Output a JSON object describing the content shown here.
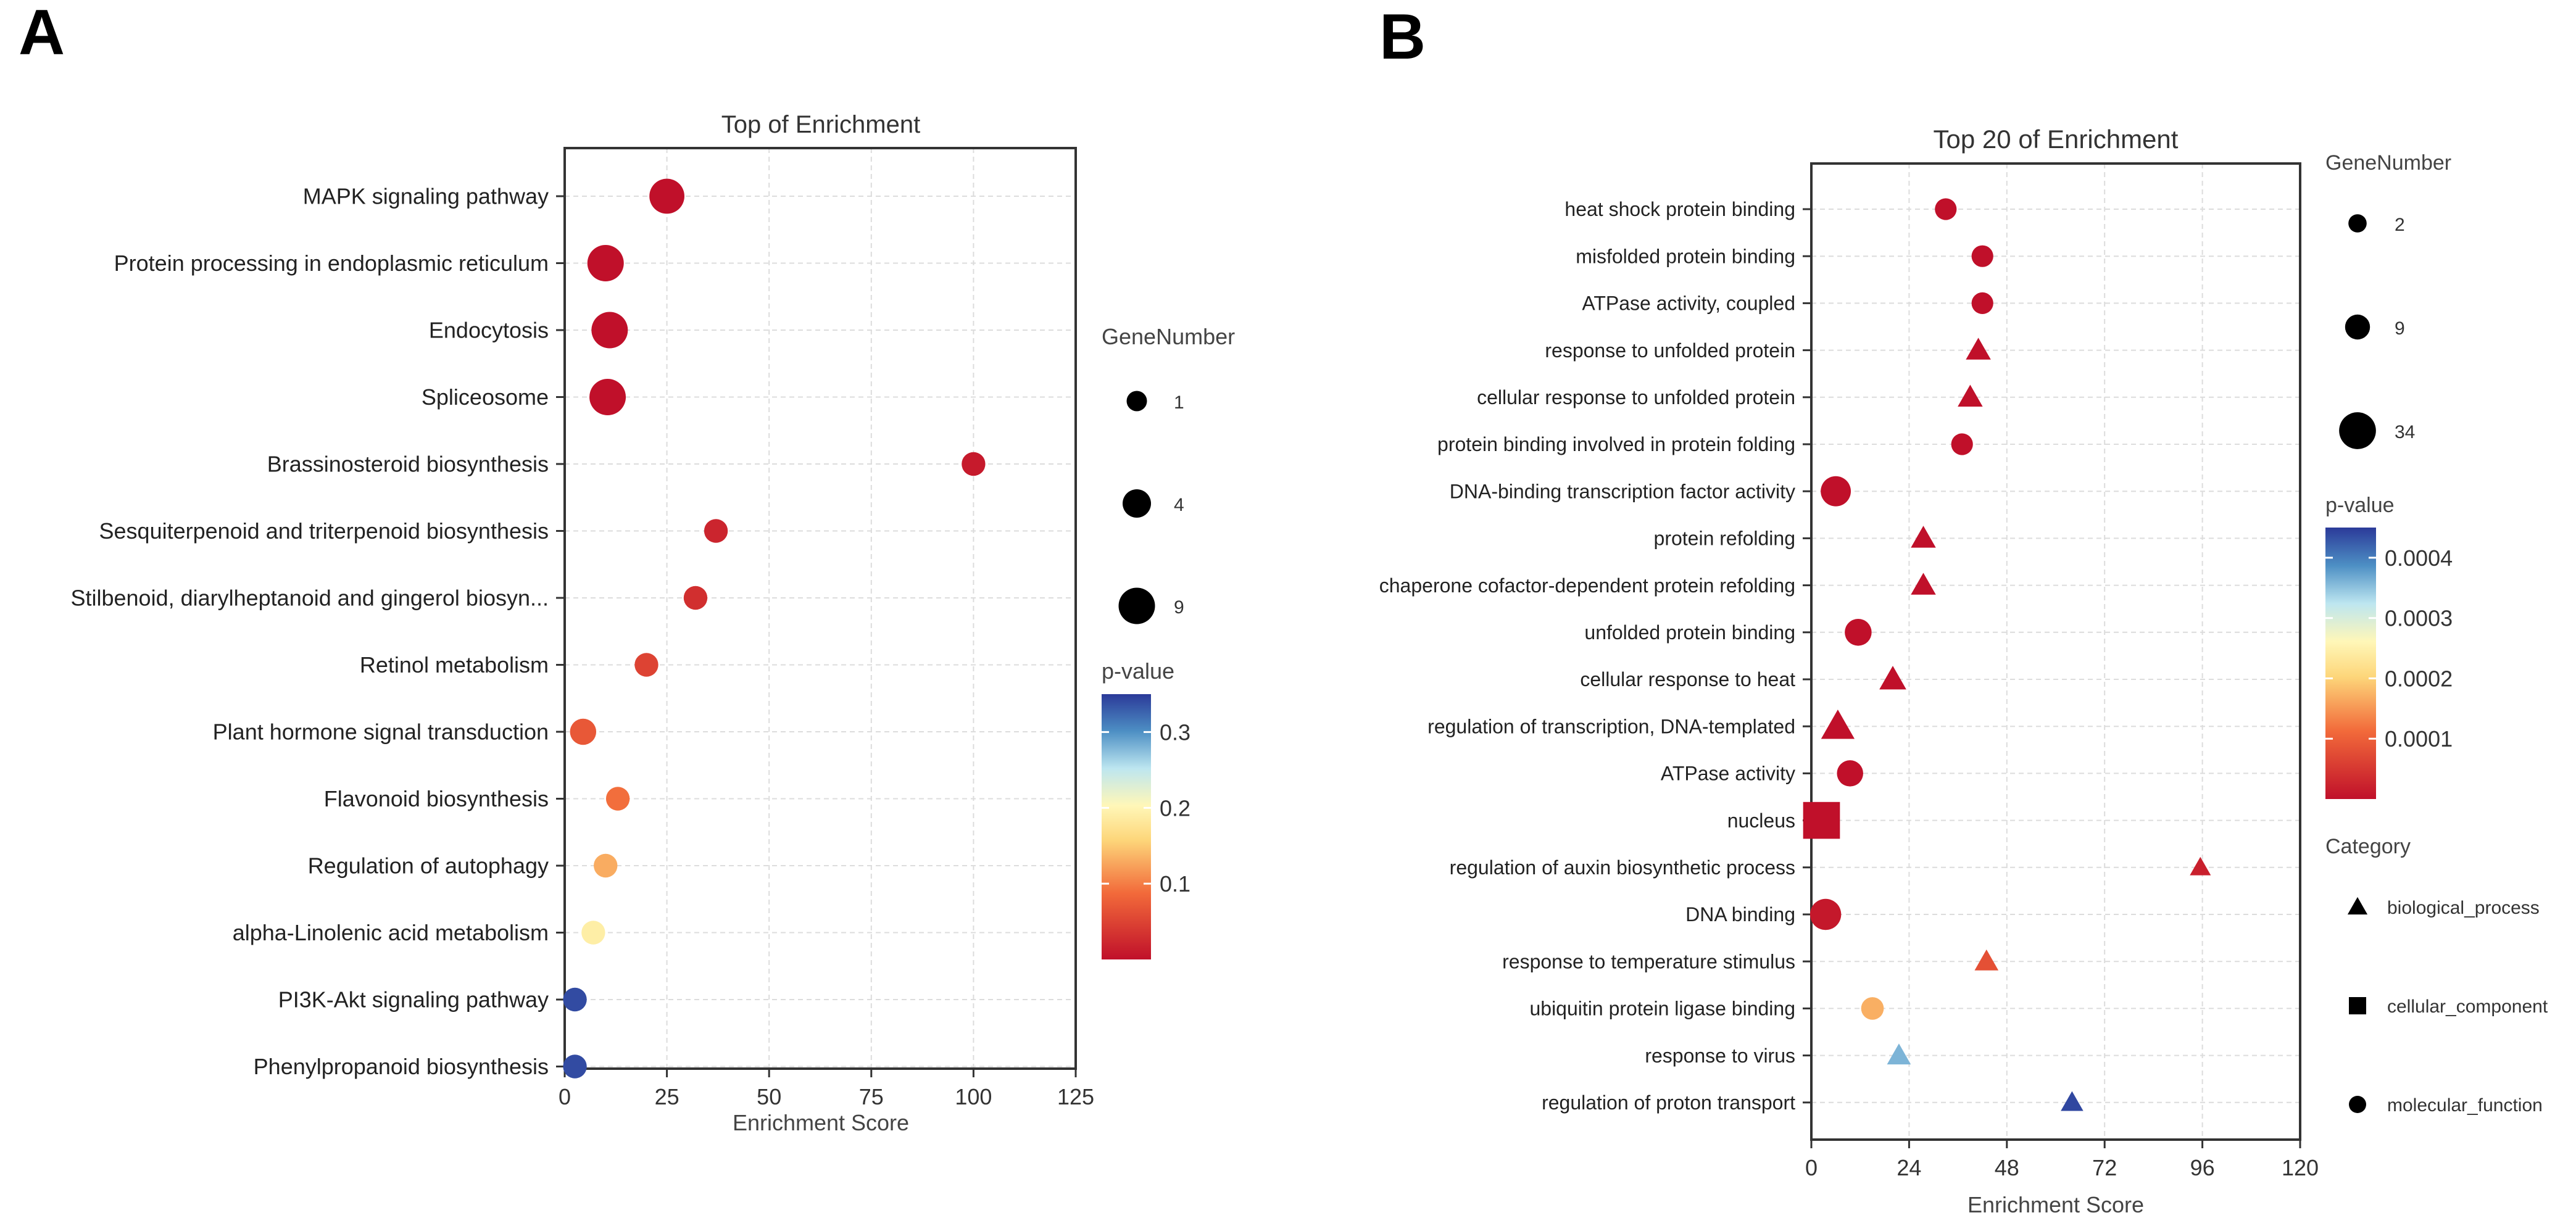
{
  "panels": {
    "a": {
      "letter": "A"
    },
    "b": {
      "letter": "B"
    }
  },
  "chart_data": [
    {
      "type": "scatter",
      "panel": "A",
      "title": "Top  of  Enrichment",
      "xlabel": "Enrichment Score",
      "ylabel": "",
      "xlim": [
        0,
        125
      ],
      "xticks": [
        0,
        25,
        50,
        75,
        100,
        125
      ],
      "grid": true,
      "points": [
        {
          "term": "MAPK signaling pathway",
          "x": 25,
          "p": 0.0,
          "gene": 8
        },
        {
          "term": "Protein processing in endoplasmic reticulum",
          "x": 10,
          "p": 0.0,
          "gene": 9
        },
        {
          "term": "Endocytosis",
          "x": 11,
          "p": 0.0,
          "gene": 9
        },
        {
          "term": "Spliceosome",
          "x": 10.5,
          "p": 0.0,
          "gene": 9
        },
        {
          "term": "Brassinosteroid biosynthesis",
          "x": 100,
          "p": 0.01,
          "gene": 2
        },
        {
          "term": "Sesquiterpenoid and triterpenoid biosynthesis",
          "x": 37,
          "p": 0.02,
          "gene": 2
        },
        {
          "term": "Stilbenoid, diarylheptanoid and gingerol biosyn...",
          "x": 32,
          "p": 0.03,
          "gene": 2
        },
        {
          "term": "Retinol metabolism",
          "x": 20,
          "p": 0.05,
          "gene": 2
        },
        {
          "term": "Plant hormone signal transduction",
          "x": 4.5,
          "p": 0.07,
          "gene": 3
        },
        {
          "term": "Flavonoid biosynthesis",
          "x": 13,
          "p": 0.09,
          "gene": 2
        },
        {
          "term": "Regulation of autophagy",
          "x": 10,
          "p": 0.13,
          "gene": 2
        },
        {
          "term": "alpha-Linolenic acid metabolism",
          "x": 7,
          "p": 0.19,
          "gene": 2
        },
        {
          "term": "PI3K-Akt signaling pathway",
          "x": 2.5,
          "p": 0.34,
          "gene": 2
        },
        {
          "term": "Phenylpropanoid biosynthesis",
          "x": 2.5,
          "p": 0.34,
          "gene": 2
        }
      ],
      "legend_size": {
        "title": "GeneNumber",
        "entries": [
          {
            "label": "1",
            "value": 1
          },
          {
            "label": "4",
            "value": 4
          },
          {
            "label": "9",
            "value": 9
          }
        ]
      },
      "legend_color": {
        "title": "p-value",
        "min": 0,
        "max": 0.35,
        "ticks": [
          {
            "label": "0.3",
            "value": 0.3
          },
          {
            "label": "0.2",
            "value": 0.2
          },
          {
            "label": "0.1",
            "value": 0.1
          }
        ]
      },
      "colors": {
        "low": "#c0102a",
        "mid": "#fff7b8",
        "high": "#2b3a99"
      }
    },
    {
      "type": "scatter",
      "panel": "B",
      "title": "Top 20 of  Enrichment",
      "xlabel": "Enrichment Score",
      "ylabel": "",
      "xlim": [
        0,
        120
      ],
      "xticks": [
        0,
        24,
        48,
        72,
        96,
        120
      ],
      "grid": true,
      "points": [
        {
          "term": "heat shock protein binding",
          "x": 33,
          "p": 0.0,
          "gene": 5,
          "category": "molecular_function"
        },
        {
          "term": "misfolded protein binding",
          "x": 42,
          "p": 0.0,
          "gene": 5,
          "category": "molecular_function"
        },
        {
          "term": "ATPase activity, coupled",
          "x": 42,
          "p": 0.0,
          "gene": 5,
          "category": "molecular_function"
        },
        {
          "term": "response to unfolded protein",
          "x": 41,
          "p": 0.0,
          "gene": 5,
          "category": "biological_process"
        },
        {
          "term": "cellular response to unfolded protein",
          "x": 39,
          "p": 0.0,
          "gene": 5,
          "category": "biological_process"
        },
        {
          "term": "protein binding involved in protein folding",
          "x": 37,
          "p": 0.0,
          "gene": 5,
          "category": "molecular_function"
        },
        {
          "term": "DNA-binding transcription factor activity",
          "x": 6,
          "p": 0.0,
          "gene": 18,
          "category": "molecular_function"
        },
        {
          "term": "protein refolding",
          "x": 27.5,
          "p": 0.0,
          "gene": 5,
          "category": "biological_process"
        },
        {
          "term": "chaperone cofactor-dependent protein refolding",
          "x": 27.5,
          "p": 0.0,
          "gene": 5,
          "category": "biological_process"
        },
        {
          "term": "unfolded protein binding",
          "x": 11.5,
          "p": 0.0,
          "gene": 12,
          "category": "molecular_function"
        },
        {
          "term": "cellular response to heat",
          "x": 20,
          "p": 0.0,
          "gene": 7,
          "category": "biological_process"
        },
        {
          "term": "regulation of transcription, DNA-templated",
          "x": 6.5,
          "p": 0.0,
          "gene": 16,
          "category": "biological_process"
        },
        {
          "term": "ATPase activity",
          "x": 9.5,
          "p": 0.0,
          "gene": 11,
          "category": "molecular_function"
        },
        {
          "term": "nucleus",
          "x": 2.5,
          "p": 0.0,
          "gene": 34,
          "category": "cellular_component"
        },
        {
          "term": "regulation of auxin biosynthetic process",
          "x": 95.5,
          "p": 2e-05,
          "gene": 2,
          "category": "biological_process"
        },
        {
          "term": "DNA binding",
          "x": 3.5,
          "p": 1e-05,
          "gene": 20,
          "category": "molecular_function"
        },
        {
          "term": "response to temperature stimulus",
          "x": 43,
          "p": 8e-05,
          "gene": 4,
          "category": "biological_process"
        },
        {
          "term": "ubiquitin protein ligase binding",
          "x": 15,
          "p": 0.00017,
          "gene": 6,
          "category": "molecular_function"
        },
        {
          "term": "response to virus",
          "x": 21.5,
          "p": 0.00036,
          "gene": 4,
          "category": "biological_process"
        },
        {
          "term": "regulation of proton transport",
          "x": 64,
          "p": 0.00044,
          "gene": 3,
          "category": "biological_process"
        }
      ],
      "legend_size": {
        "title": "GeneNumber",
        "entries": [
          {
            "label": "2",
            "value": 2
          },
          {
            "label": "9",
            "value": 9
          },
          {
            "label": "34",
            "value": 34
          }
        ]
      },
      "legend_color": {
        "title": "p-value",
        "min": 0,
        "max": 0.00045,
        "ticks": [
          {
            "label": "0.0004",
            "value": 0.0004
          },
          {
            "label": "0.0003",
            "value": 0.0003
          },
          {
            "label": "0.0002",
            "value": 0.0002
          },
          {
            "label": "0.0001",
            "value": 0.0001
          }
        ]
      },
      "legend_category": {
        "title": "Category",
        "entries": [
          {
            "label": "biological_process",
            "shape": "triangle"
          },
          {
            "label": "cellular_component",
            "shape": "square"
          },
          {
            "label": "molecular_function",
            "shape": "circle"
          }
        ]
      },
      "colors": {
        "low": "#c0102a",
        "mid": "#fff7b8",
        "high": "#2b3a99"
      }
    }
  ]
}
